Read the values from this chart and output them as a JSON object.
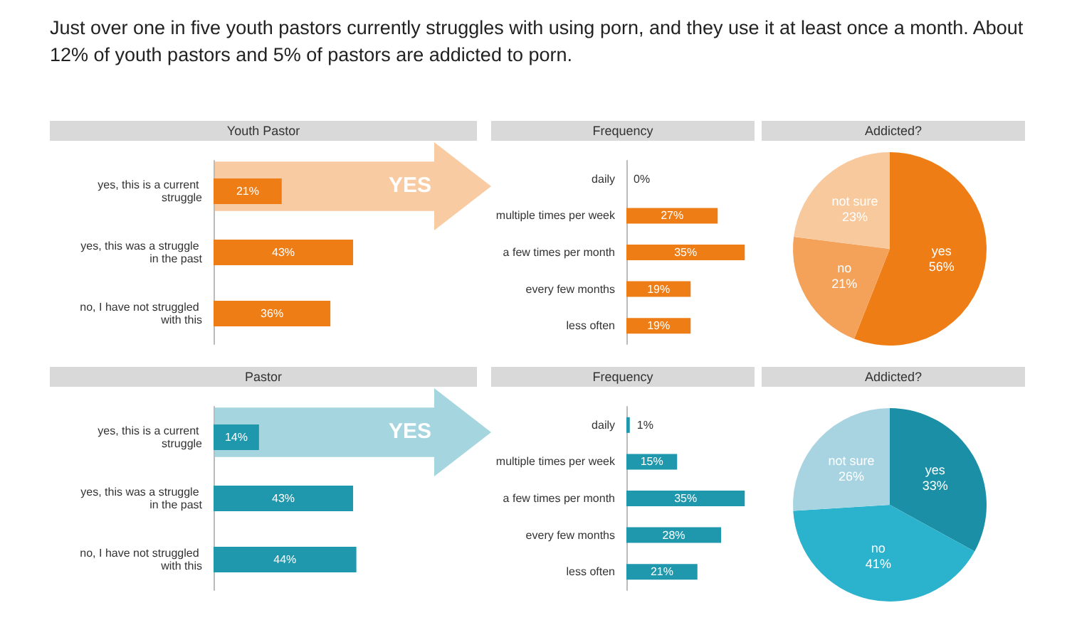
{
  "chart_data": [
    {
      "type": "other",
      "title": "Just over one in five youth pastors currently struggles with using porn, and they use it at least once a month. About 12% of youth pastors and 5% of pastors are addicted to porn."
    },
    {
      "type": "bar",
      "orientation": "horizontal",
      "title": "Youth Pastor",
      "categories": [
        "yes, this is a current struggle",
        "yes, this was a struggle in the past",
        "no, I have not struggled with this"
      ],
      "values": [
        21,
        43,
        36
      ],
      "value_labels": [
        "21%",
        "43%",
        "36%"
      ],
      "color": "#ef7d16",
      "annotations": [
        "YES"
      ]
    },
    {
      "type": "bar",
      "orientation": "horizontal",
      "title": "Frequency",
      "categories": [
        "daily",
        "multiple times per week",
        "a few times per month",
        "every few months",
        "less often"
      ],
      "values": [
        0,
        27,
        35,
        19,
        19
      ],
      "value_labels": [
        "0%",
        "27%",
        "35%",
        "19%",
        "19%"
      ],
      "color": "#ef7d16"
    },
    {
      "type": "pie",
      "title": "Addicted?",
      "categories": [
        "yes",
        "no",
        "not sure"
      ],
      "values": [
        56,
        21,
        23
      ],
      "value_labels": [
        "56%",
        "21%",
        "23%"
      ],
      "colors": [
        "#ef7d16",
        "#f4a25a",
        "#f8c99c"
      ]
    },
    {
      "type": "bar",
      "orientation": "horizontal",
      "title": "Pastor",
      "categories": [
        "yes, this is a current struggle",
        "yes, this was a struggle in the past",
        "no, I have not struggled with this"
      ],
      "values": [
        14,
        43,
        44
      ],
      "value_labels": [
        "14%",
        "43%",
        "44%"
      ],
      "color": "#1f97ad",
      "annotations": [
        "YES"
      ]
    },
    {
      "type": "bar",
      "orientation": "horizontal",
      "title": "Frequency",
      "categories": [
        "daily",
        "multiple times per week",
        "a few times per month",
        "every few months",
        "less often"
      ],
      "values": [
        1,
        15,
        35,
        28,
        21
      ],
      "value_labels": [
        "1%",
        "15%",
        "35%",
        "28%",
        "21%"
      ],
      "color": "#1f97ad"
    },
    {
      "type": "pie",
      "title": "Addicted?",
      "categories": [
        "yes",
        "no",
        "not sure"
      ],
      "values": [
        33,
        41,
        26
      ],
      "value_labels": [
        "33%",
        "41%",
        "26%"
      ],
      "colors": [
        "#1a8fa5",
        "#2bb2cd",
        "#a8d4e1"
      ]
    }
  ]
}
